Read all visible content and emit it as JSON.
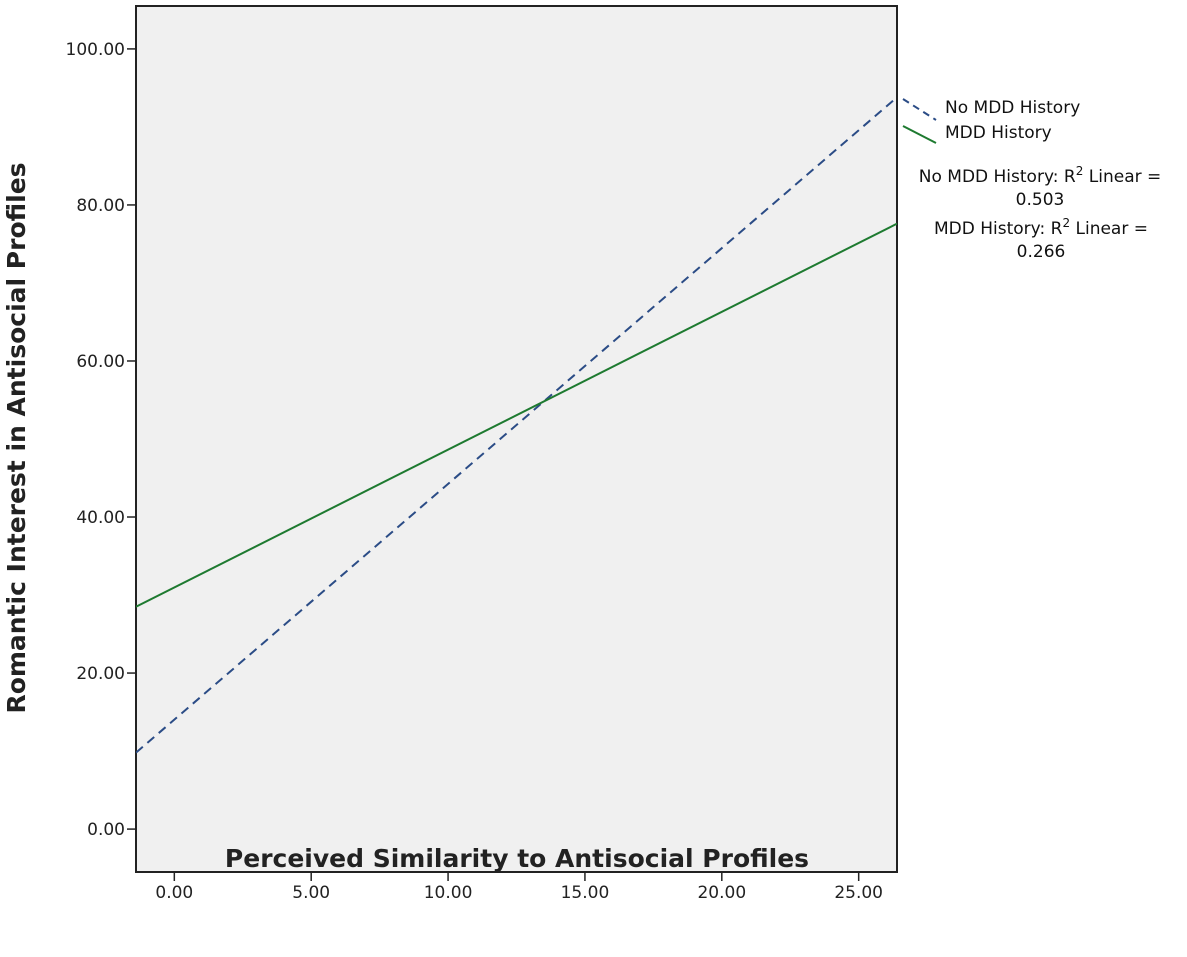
{
  "chart_data": {
    "type": "line",
    "title": "",
    "xlabel": "Perceived Similarity to Antisocial Profiles",
    "ylabel": "Romantic Interest in Antisocial Profiles",
    "xlim": [
      -1.4,
      26.4
    ],
    "ylim": [
      -5.5,
      105.5
    ],
    "x_ticks": [
      0,
      5,
      10,
      15,
      20,
      25
    ],
    "x_tick_labels": [
      "0.00",
      "5.00",
      "10.00",
      "15.00",
      "20.00",
      "25.00"
    ],
    "y_ticks": [
      0,
      20,
      40,
      60,
      80,
      100
    ],
    "y_tick_labels": [
      "0.00",
      "20.00",
      "40.00",
      "60.00",
      "80.00",
      "100.00"
    ],
    "grid": false,
    "legend_position": "right",
    "background_color": "#f0f0f0",
    "series": [
      {
        "name": "No MDD History",
        "color": "#2b4c86",
        "line_style": "dashed",
        "x": [
          -1.4,
          26.4
        ],
        "y": [
          9.8,
          93.8
        ],
        "r2_label": "No MDD History: R",
        "r2_suffix": " Linear =",
        "r2_value": "0.503"
      },
      {
        "name": "MDD History",
        "color": "#1e7a30",
        "line_style": "solid",
        "x": [
          -1.4,
          26.4
        ],
        "y": [
          28.5,
          77.6
        ],
        "r2_label": "MDD History: R",
        "r2_suffix": " Linear =",
        "r2_value": "0.266"
      }
    ],
    "r2_superscript": "2"
  }
}
